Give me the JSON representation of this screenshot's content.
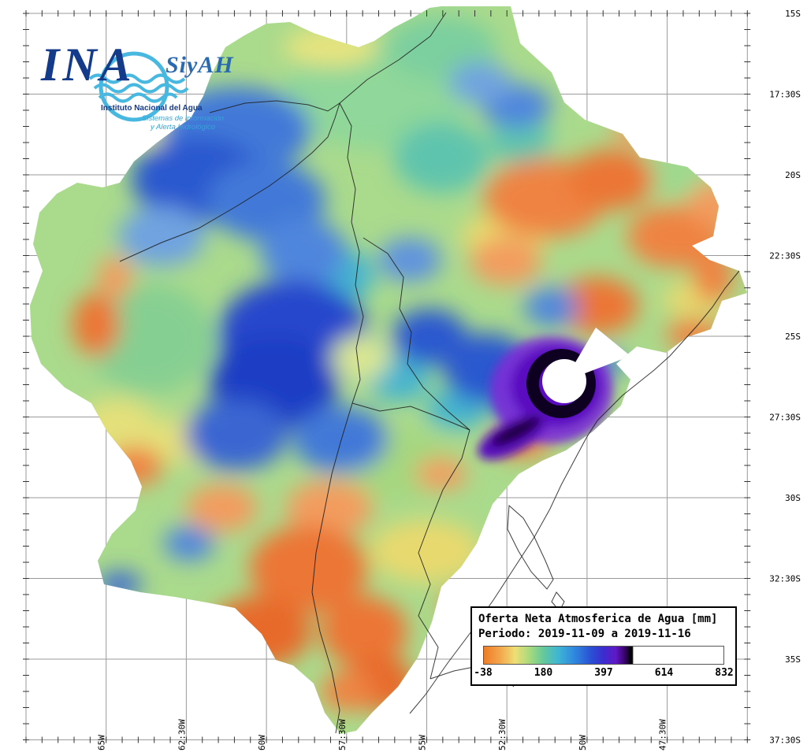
{
  "logo": {
    "acronym": "INA",
    "siyah": "SiyAH",
    "institute": "Instituto Nacional del Agua",
    "system_line1": "Sistemas de información",
    "system_line2": "y Alerta Hidrológico"
  },
  "legend": {
    "title": "Oferta Neta Atmosferica de Agua [mm]",
    "period": "Periodo: 2019-11-09 a 2019-11-16",
    "ticks": [
      "-38",
      "180",
      "397",
      "614",
      "832"
    ],
    "scale_colors": [
      "#ef7d28",
      "#f3a84e",
      "#eede74",
      "#a9da7d",
      "#63c89c",
      "#3fb6d4",
      "#2f86de",
      "#2a4ed4",
      "#3c2ccf",
      "#6018c6",
      "#43077f",
      "#000000",
      "#ffffff"
    ],
    "scale_min": -38,
    "scale_max": 832
  },
  "axes": {
    "lat_labels": [
      "15S",
      "17:30S",
      "20S",
      "22:30S",
      "25S",
      "27:30S",
      "30S",
      "32:30S",
      "35S",
      "37:30S"
    ],
    "lon_labels": [
      "65W",
      "62:30W",
      "60W",
      "57:30W",
      "55W",
      "52:30W",
      "50W",
      "47:30W"
    ]
  }
}
